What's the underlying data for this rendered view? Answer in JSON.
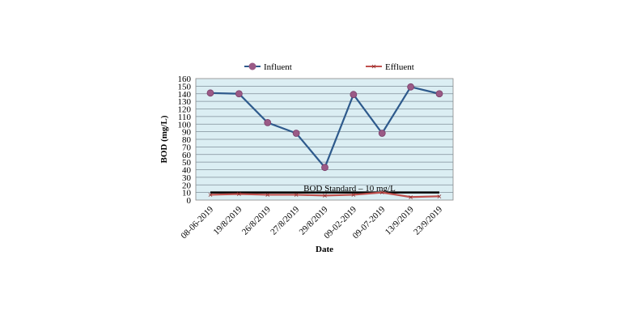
{
  "chart_data": {
    "type": "line",
    "categories": [
      "08-06-2019",
      "19/8/2019",
      "26/8/2019",
      "27/8/2019",
      "29/8/2019",
      "09-02-2019",
      "09-07-2019",
      "13/9/2019",
      "23/9/2019"
    ],
    "series": [
      {
        "name": "Influent",
        "values": [
          141,
          140,
          102,
          88,
          43,
          139,
          88,
          149,
          140
        ],
        "color": "#2e5a8c",
        "marker": "circle",
        "marker_color": "#9a5a86"
      },
      {
        "name": "Effluent",
        "values": [
          7,
          8,
          7,
          7,
          6,
          7,
          10,
          4,
          5
        ],
        "color": "#c0504d",
        "marker": "x",
        "marker_color": "#8b2b2b"
      }
    ],
    "reference_line": {
      "label": "BOD Standard – 10 mg/L",
      "value": 10,
      "color": "#000000"
    },
    "title": "",
    "xlabel": "Date",
    "ylabel": "BOD (mg/L)",
    "ylim": [
      0,
      160
    ],
    "yticks": [
      0,
      10,
      20,
      30,
      40,
      50,
      60,
      70,
      80,
      90,
      100,
      110,
      120,
      130,
      140,
      150,
      160
    ],
    "grid": true,
    "plot_background": "#dbeef3",
    "legend_position": "top"
  }
}
